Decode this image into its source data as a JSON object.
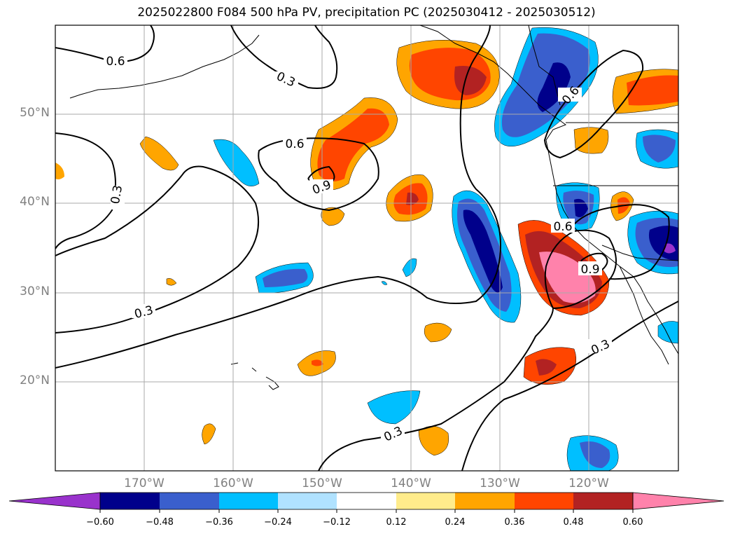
{
  "title": "2025022800 F084 500 hPa PV, precipitation PC (2025030412 - 2025030512)",
  "map": {
    "lat_ticks": [
      "50°N",
      "40°N",
      "30°N",
      "20°N"
    ],
    "lon_ticks": [
      "170°W",
      "160°W",
      "150°W",
      "140°W",
      "130°W",
      "120°W"
    ],
    "contour_labels": [
      "0.6",
      "0.3",
      "0.6",
      "0.9",
      "0.3",
      "0.3",
      "0.6",
      "0.6",
      "0.9",
      "0.3",
      "0.3"
    ]
  },
  "colorbar": {
    "tick_labels": [
      "−0.60",
      "−0.48",
      "−0.36",
      "−0.24",
      "−0.12",
      "0.12",
      "0.24",
      "0.36",
      "0.48",
      "0.60"
    ],
    "colors": [
      "#9932cc",
      "#00008b",
      "#3a5fcd",
      "#00bfff",
      "#b0e2ff",
      "#ffffff",
      "#ffec8b",
      "#ffa500",
      "#ff4500",
      "#b22222",
      "#ff82ab"
    ]
  }
}
